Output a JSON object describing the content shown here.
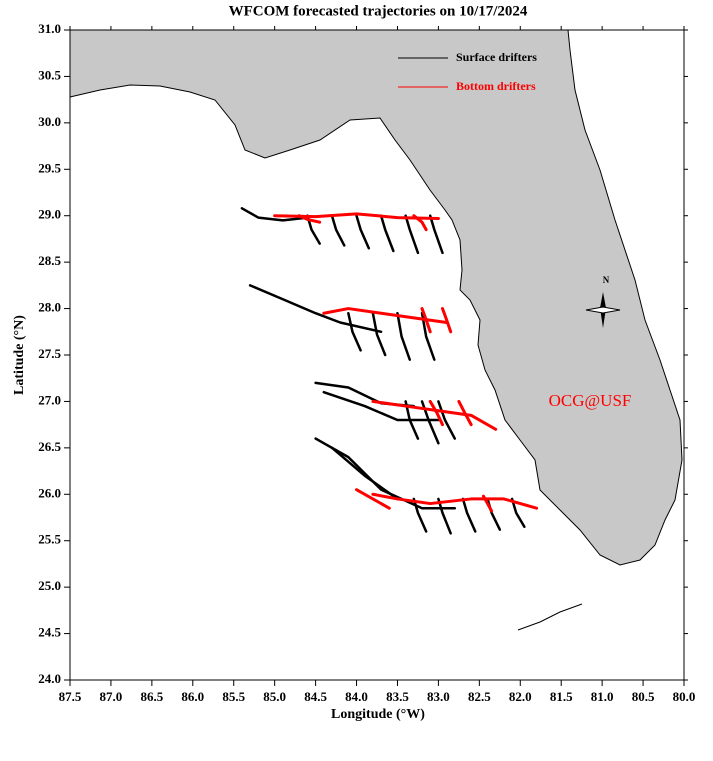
{
  "chart_data": {
    "type": "map",
    "title": "WFCOM forecasted trajectories on 10/17/2024",
    "x_label": "Longitude (°W)",
    "y_label": "Latitude (°N)",
    "north_label": "N",
    "annotation": "OCG@USF",
    "annotation_color": "#ff0000",
    "xlim": [
      87.5,
      80.0
    ],
    "ylim": [
      24.0,
      31.0
    ],
    "xticks": [
      87.5,
      {
        "value": 87.0,
        "label": "87.0"
      },
      86.5,
      {
        "value": 86.0,
        "label": "86.0"
      },
      85.5,
      {
        "value": 85.0,
        "label": "85.0"
      },
      84.5,
      {
        "value": 84.0,
        "label": "84.0"
      },
      83.5,
      {
        "value": 83.0,
        "label": "83.0"
      },
      82.5,
      {
        "value": 82.0,
        "label": "82.0"
      },
      81.5,
      {
        "value": 81.0,
        "label": "81.0"
      },
      80.5,
      {
        "value": 80.0,
        "label": "80.0"
      }
    ],
    "yticks": [
      {
        "value": 24.0,
        "label": "24.0"
      },
      24.5,
      {
        "value": 25.0,
        "label": "25.0"
      },
      25.5,
      {
        "value": 26.0,
        "label": "26.0"
      },
      26.5,
      {
        "value": 27.0,
        "label": "27.0"
      },
      27.5,
      {
        "value": 28.0,
        "label": "28.0"
      },
      28.5,
      {
        "value": 29.0,
        "label": "29.0"
      },
      29.5,
      {
        "value": 30.0,
        "label": "30.0"
      },
      30.5,
      {
        "value": 31.0,
        "label": "31.0"
      }
    ],
    "legend": "upper right",
    "series": [
      {
        "name": "Surface drifters",
        "color": "#000000",
        "tracks": [
          {
            "lon": [
              85.4,
              85.2,
              84.9,
              84.6
            ],
            "lat": [
              29.08,
              28.98,
              28.95,
              28.98
            ]
          },
          {
            "lon": [
              84.6,
              84.55,
              84.45
            ],
            "lat": [
              29.0,
              28.85,
              28.7
            ]
          },
          {
            "lon": [
              84.3,
              84.25,
              84.15
            ],
            "lat": [
              29.0,
              28.85,
              28.68
            ]
          },
          {
            "lon": [
              84.0,
              83.95,
              83.85
            ],
            "lat": [
              29.0,
              28.85,
              28.65
            ]
          },
          {
            "lon": [
              83.7,
              83.65,
              83.55
            ],
            "lat": [
              29.0,
              28.85,
              28.62
            ]
          },
          {
            "lon": [
              83.4,
              83.35,
              83.25
            ],
            "lat": [
              29.0,
              28.85,
              28.6
            ]
          },
          {
            "lon": [
              83.1,
              83.05,
              82.95
            ],
            "lat": [
              29.0,
              28.85,
              28.6
            ]
          },
          {
            "lon": [
              85.3,
              84.9,
              84.5,
              84.2,
              83.7
            ],
            "lat": [
              28.25,
              28.1,
              27.95,
              27.85,
              27.75
            ]
          },
          {
            "lon": [
              84.1,
              84.05,
              83.95
            ],
            "lat": [
              27.95,
              27.75,
              27.55
            ]
          },
          {
            "lon": [
              83.8,
              83.75,
              83.65
            ],
            "lat": [
              27.95,
              27.72,
              27.5
            ]
          },
          {
            "lon": [
              83.5,
              83.45,
              83.35
            ],
            "lat": [
              27.95,
              27.7,
              27.45
            ]
          },
          {
            "lon": [
              83.2,
              83.15,
              83.05
            ],
            "lat": [
              27.95,
              27.7,
              27.45
            ]
          },
          {
            "lon": [
              84.5,
              84.1,
              83.7,
              83.3
            ],
            "lat": [
              27.2,
              27.15,
              26.98,
              26.95
            ]
          },
          {
            "lon": [
              84.4,
              83.9,
              83.5,
              83.0
            ],
            "lat": [
              27.1,
              26.95,
              26.8,
              26.8
            ]
          },
          {
            "lon": [
              83.4,
              83.35,
              83.25
            ],
            "lat": [
              27.0,
              26.8,
              26.6
            ]
          },
          {
            "lon": [
              83.2,
              83.12,
              83.0
            ],
            "lat": [
              27.0,
              26.8,
              26.55
            ]
          },
          {
            "lon": [
              83.0,
              82.92,
              82.8
            ],
            "lat": [
              27.0,
              26.8,
              26.6
            ]
          },
          {
            "lon": [
              84.5,
              84.1,
              83.7,
              83.2,
              82.8
            ],
            "lat": [
              26.6,
              26.4,
              26.05,
              25.85,
              25.85
            ]
          },
          {
            "lon": [
              84.3,
              83.9,
              83.5
            ],
            "lat": [
              26.5,
              26.2,
              25.95
            ]
          },
          {
            "lon": [
              83.3,
              83.25,
              83.15
            ],
            "lat": [
              25.95,
              25.8,
              25.6
            ]
          },
          {
            "lon": [
              83.0,
              82.95,
              82.85
            ],
            "lat": [
              25.95,
              25.8,
              25.58
            ]
          },
          {
            "lon": [
              82.7,
              82.65,
              82.55
            ],
            "lat": [
              25.95,
              25.8,
              25.6
            ]
          },
          {
            "lon": [
              82.4,
              82.35,
              82.25
            ],
            "lat": [
              25.95,
              25.8,
              25.62
            ]
          },
          {
            "lon": [
              82.1,
              82.05,
              81.95
            ],
            "lat": [
              25.95,
              25.8,
              25.65
            ]
          }
        ]
      },
      {
        "name": "Bottom drifters",
        "color": "#ff0000",
        "tracks": [
          {
            "lon": [
              85.0,
              84.5,
              84.0,
              83.5,
              83.0
            ],
            "lat": [
              29.0,
              28.99,
              29.02,
              28.98,
              28.97
            ]
          },
          {
            "lon": [
              84.7,
              84.6,
              84.45
            ],
            "lat": [
              29.0,
              28.96,
              28.93
            ]
          },
          {
            "lon": [
              83.3,
              83.2,
              83.15
            ],
            "lat": [
              29.0,
              28.93,
              28.85
            ]
          },
          {
            "lon": [
              84.4,
              84.1,
              83.7,
              83.3,
              82.9
            ],
            "lat": [
              27.95,
              28.0,
              27.95,
              27.9,
              27.85
            ]
          },
          {
            "lon": [
              83.2,
              83.15,
              83.1
            ],
            "lat": [
              28.0,
              27.88,
              27.75
            ]
          },
          {
            "lon": [
              82.95,
              82.9,
              82.85
            ],
            "lat": [
              28.0,
              27.88,
              27.75
            ]
          },
          {
            "lon": [
              83.8,
              83.4,
              83.0,
              82.6,
              82.3
            ],
            "lat": [
              27.0,
              26.95,
              26.9,
              26.85,
              26.7
            ]
          },
          {
            "lon": [
              83.1,
              83.02,
              82.95
            ],
            "lat": [
              27.0,
              26.88,
              26.75
            ]
          },
          {
            "lon": [
              82.75,
              82.68,
              82.6
            ],
            "lat": [
              27.0,
              26.88,
              26.75
            ]
          },
          {
            "lon": [
              83.8,
              83.5,
              83.1,
              82.6,
              82.2,
              81.8
            ],
            "lat": [
              26.0,
              25.95,
              25.9,
              25.95,
              25.95,
              25.85
            ]
          },
          {
            "lon": [
              84.0,
              83.6
            ],
            "lat": [
              26.05,
              25.85
            ]
          },
          {
            "lon": [
              82.45,
              82.4,
              82.35
            ],
            "lat": [
              25.98,
              25.9,
              25.82
            ]
          }
        ]
      }
    ]
  }
}
